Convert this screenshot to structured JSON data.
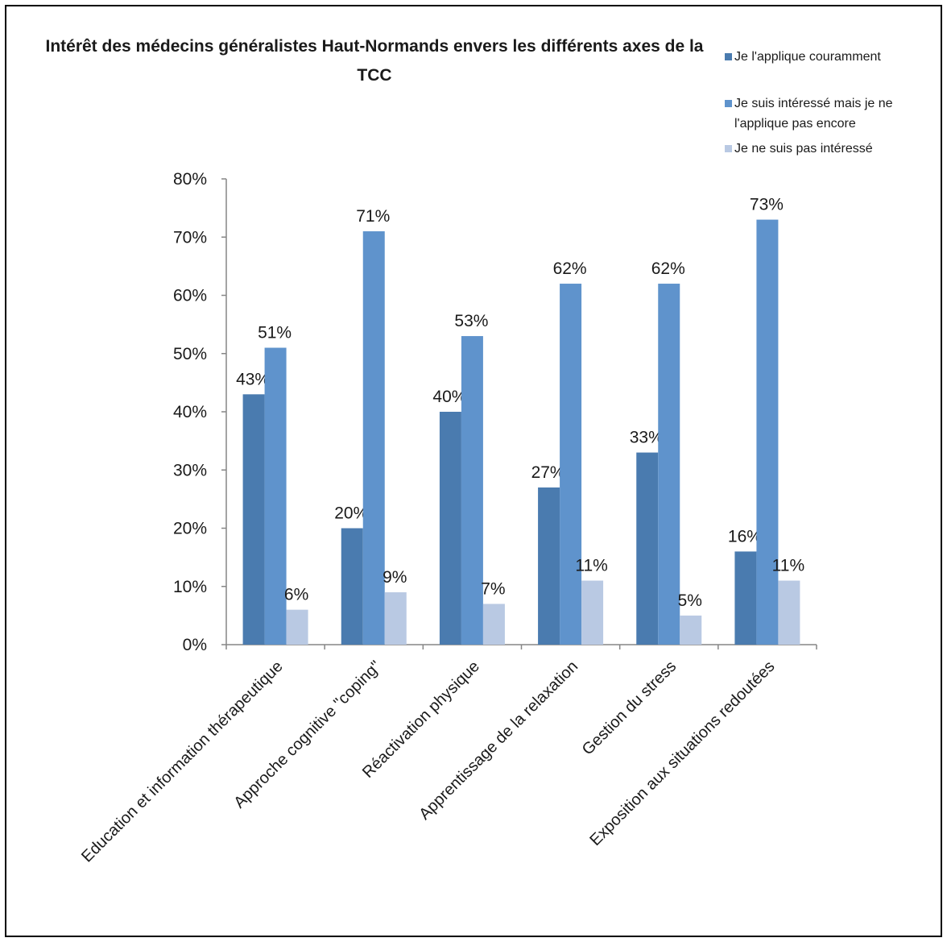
{
  "chart_data": {
    "type": "bar",
    "title": "Intérêt des médecins généralistes Haut-Normands envers les différents axes de la TCC",
    "categories": [
      "Education et information thérapeutique",
      "Approche cognitive \"coping\"",
      "Réactivation physique",
      "Apprentissage de la relaxation",
      "Gestion du stress",
      "Exposition aux situations redoutées"
    ],
    "series": [
      {
        "name": "Je l'applique couramment",
        "values": [
          43,
          20,
          40,
          27,
          33,
          16
        ],
        "labels": [
          "43%",
          "20%",
          "40%",
          "27%",
          "33%",
          "16%"
        ],
        "color": "#4A7BAF"
      },
      {
        "name": "Je suis intéressé mais je ne l'applique pas encore",
        "values": [
          51,
          71,
          53,
          62,
          62,
          73
        ],
        "labels": [
          "51%",
          "71%",
          "53%",
          "62%",
          "62%",
          "73%"
        ],
        "color": "#5F93CC"
      },
      {
        "name": "Je ne suis pas intéressé",
        "values": [
          6,
          9,
          7,
          11,
          5,
          11
        ],
        "labels": [
          "6%",
          "9%",
          "7%",
          "11%",
          "5%",
          "11%"
        ],
        "color": "#B9C9E3"
      }
    ],
    "ylim": [
      0,
      80
    ],
    "yticks": [
      "0%",
      "10%",
      "20%",
      "30%",
      "40%",
      "50%",
      "60%",
      "70%",
      "80%"
    ],
    "grid": false,
    "legend_position": "top-right"
  }
}
